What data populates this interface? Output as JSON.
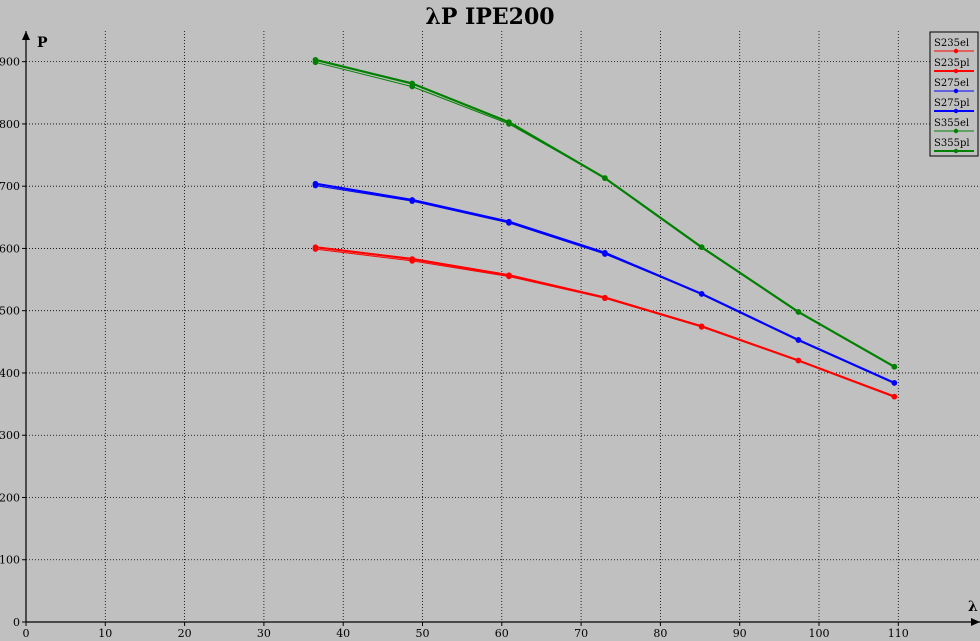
{
  "chart_data": {
    "type": "line",
    "title": "λP IPE200",
    "xlabel": "λ",
    "ylabel": "P",
    "xlim": [
      0,
      118
    ],
    "ylim": [
      0,
      950
    ],
    "x_ticks": [
      0,
      10,
      20,
      30,
      40,
      50,
      60,
      70,
      80,
      90,
      100,
      110
    ],
    "y_ticks": [
      0,
      100,
      200,
      300,
      400,
      500,
      600,
      700,
      800,
      900
    ],
    "grid": true,
    "legend_position": "top-right",
    "series": [
      {
        "name": "S235el",
        "color": "#ff0000",
        "thick": false,
        "x": [
          36.5,
          48.7,
          60.9,
          73.0,
          85.2,
          97.4,
          109.5
        ],
        "y": [
          599,
          580,
          555,
          520,
          474,
          420,
          362
        ]
      },
      {
        "name": "S235pl",
        "color": "#ff0000",
        "thick": true,
        "x": [
          36.5,
          48.7,
          60.9,
          73.0,
          85.2,
          97.4,
          109.5
        ],
        "y": [
          602,
          583,
          557,
          521,
          475,
          420,
          362
        ]
      },
      {
        "name": "S275el",
        "color": "#0000ff",
        "thick": false,
        "x": [
          36.5,
          48.7,
          60.9,
          73.0,
          85.2,
          97.4,
          109.5
        ],
        "y": [
          701,
          676,
          641,
          591,
          527,
          453,
          384
        ]
      },
      {
        "name": "S275pl",
        "color": "#0000ff",
        "thick": true,
        "x": [
          36.5,
          48.7,
          60.9,
          73.0,
          85.2,
          97.4,
          109.5
        ],
        "y": [
          704,
          678,
          643,
          593,
          527,
          453,
          384
        ]
      },
      {
        "name": "S355el",
        "color": "#008000",
        "thick": false,
        "x": [
          36.5,
          48.7,
          60.9,
          73.0,
          85.2,
          97.4,
          109.5
        ],
        "y": [
          899,
          860,
          800,
          713,
          602,
          498,
          410
        ]
      },
      {
        "name": "S355pl",
        "color": "#008000",
        "thick": true,
        "x": [
          36.5,
          48.7,
          60.9,
          73.0,
          85.2,
          97.4,
          109.5
        ],
        "y": [
          903,
          865,
          803,
          713,
          602,
          498,
          410
        ]
      }
    ]
  }
}
